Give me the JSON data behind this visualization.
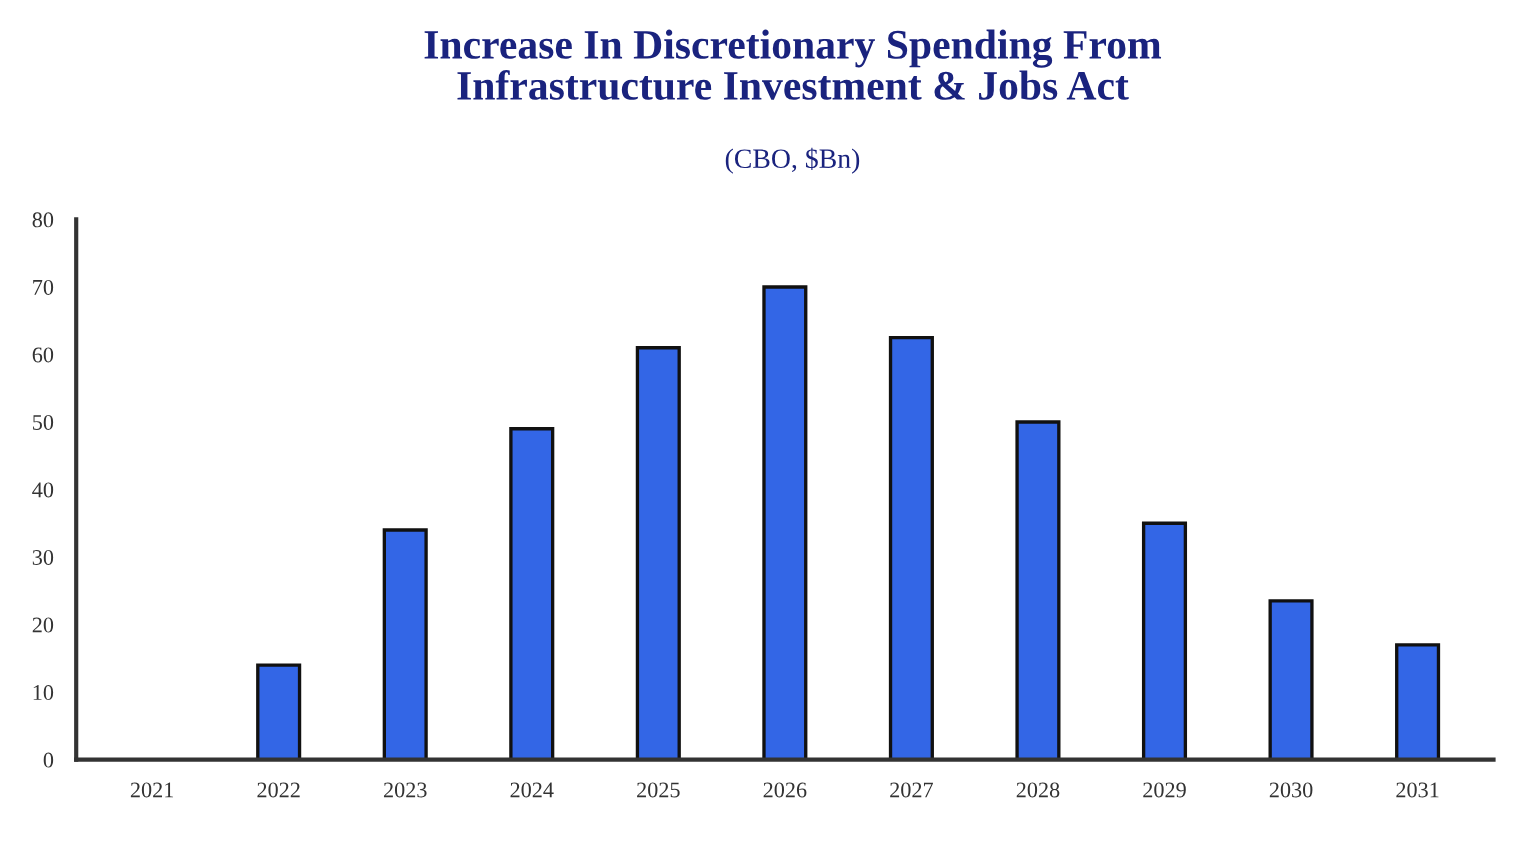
{
  "chart_data": {
    "type": "bar",
    "title": "Increase In Discretionary Spending From\nInfrastructure Investment & Jobs Act",
    "subtitle": "(CBO, $Bn)",
    "categories": [
      "2021",
      "2022",
      "2023",
      "2024",
      "2025",
      "2026",
      "2027",
      "2028",
      "2029",
      "2030",
      "2031"
    ],
    "values": [
      0,
      14,
      34,
      49,
      61,
      70,
      62.5,
      50,
      35,
      23.5,
      17
    ],
    "color": "#3366e6",
    "ylim": [
      0,
      80
    ],
    "yticks": [
      0,
      10,
      20,
      30,
      40,
      50,
      60,
      70,
      80
    ],
    "grid": false,
    "legend": false
  }
}
